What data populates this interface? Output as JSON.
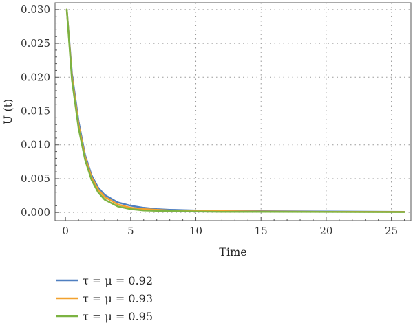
{
  "chart_data": {
    "type": "line",
    "xlabel": "Time",
    "ylabel": "U (t)",
    "xlim": [
      -0.8,
      26.5
    ],
    "ylim": [
      -0.0012,
      0.031
    ],
    "xticks": [
      0,
      5,
      10,
      15,
      20,
      25
    ],
    "xtick_labels": [
      "0",
      "5",
      "10",
      "15",
      "20",
      "25"
    ],
    "yticks": [
      0.0,
      0.005,
      0.01,
      0.015,
      0.02,
      0.025,
      0.03
    ],
    "ytick_labels": [
      "0.000",
      "0.005",
      "0.010",
      "0.015",
      "0.020",
      "0.025",
      "0.030"
    ],
    "grid": true,
    "legend_position": "below-left",
    "series": [
      {
        "name": "τ = μ = 0.92",
        "color": "#4f7fc0",
        "x": [
          0.1,
          0.5,
          1.0,
          1.5,
          2.0,
          2.5,
          3.0,
          4.0,
          5.0,
          6.0,
          7.0,
          8.0,
          10.0,
          12.0,
          15.0,
          20.0,
          26.0
        ],
        "y": [
          0.03,
          0.0205,
          0.0135,
          0.0085,
          0.0055,
          0.0037,
          0.0026,
          0.0015,
          0.001,
          0.0007,
          0.0005,
          0.0004,
          0.0003,
          0.00025,
          0.0002,
          0.00015,
          0.0001
        ]
      },
      {
        "name": "τ = μ = 0.93",
        "color": "#f2a12e",
        "x": [
          0.1,
          0.5,
          1.0,
          1.5,
          2.0,
          2.5,
          3.0,
          4.0,
          5.0,
          6.0,
          7.0,
          8.0,
          10.0,
          12.0,
          15.0,
          20.0,
          26.0
        ],
        "y": [
          0.03,
          0.02,
          0.013,
          0.0082,
          0.0052,
          0.0034,
          0.0023,
          0.0012,
          0.0007,
          0.0005,
          0.0004,
          0.0003,
          0.00025,
          0.0002,
          0.00015,
          0.0001,
          8e-05
        ]
      },
      {
        "name": "τ = μ = 0.95",
        "color": "#7cb342",
        "x": [
          0.1,
          0.5,
          1.0,
          1.5,
          2.0,
          2.5,
          3.0,
          4.0,
          5.0,
          6.0,
          7.0,
          8.0,
          10.0,
          12.0,
          15.0,
          20.0,
          26.0
        ],
        "y": [
          0.03,
          0.0195,
          0.0125,
          0.0078,
          0.0048,
          0.003,
          0.0019,
          0.0009,
          0.0005,
          0.0003,
          0.00025,
          0.0002,
          0.00015,
          0.0001,
          0.0001,
          8e-05,
          6e-05
        ]
      }
    ]
  }
}
